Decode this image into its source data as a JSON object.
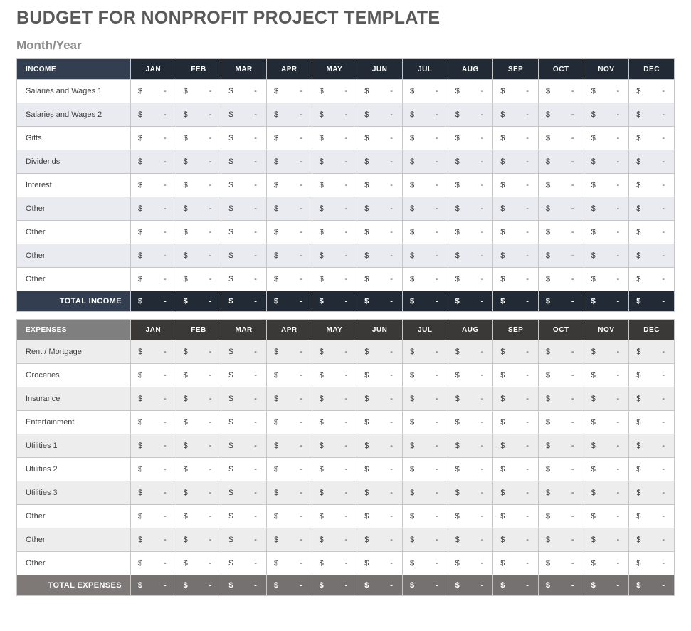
{
  "page": {
    "title": "BUDGET FOR NONPROFIT PROJECT TEMPLATE",
    "subtitle": "Month/Year"
  },
  "colors": {
    "title_text": "#595959",
    "subtitle_text": "#8C8C8C",
    "body_text": "#3F3F3F",
    "grid_line": "#C6C6C6",
    "income_header_label_bg": "#333F50",
    "income_header_month_bg": "#222B35",
    "income_band": "#E9EBF1",
    "expenses_header_label_bg": "#7F7F7F",
    "expenses_header_month_bg": "#3B3838",
    "expenses_total_label_bg": "#7E7977",
    "expenses_total_month_bg": "#767171",
    "expenses_band": "#EEEDEE"
  },
  "tables": [
    {
      "section_label": "INCOME",
      "theme": "income",
      "months": [
        "JAN",
        "FEB",
        "MAR",
        "APR",
        "MAY",
        "JUN",
        "JUL",
        "AUG",
        "SEP",
        "OCT",
        "NOV",
        "DEC"
      ],
      "cell_currency": "$",
      "cell_value": "-",
      "rows": [
        {
          "label": "Salaries and Wages 1"
        },
        {
          "label": "Salaries and Wages 2"
        },
        {
          "label": "Gifts"
        },
        {
          "label": "Dividends"
        },
        {
          "label": "Interest"
        },
        {
          "label": "Other"
        },
        {
          "label": "Other"
        },
        {
          "label": "Other"
        },
        {
          "label": "Other"
        }
      ],
      "total_label": "TOTAL INCOME"
    },
    {
      "section_label": "EXPENSES",
      "theme": "expenses",
      "months": [
        "JAN",
        "FEB",
        "MAR",
        "APR",
        "MAY",
        "JUN",
        "JUL",
        "AUG",
        "SEP",
        "OCT",
        "NOV",
        "DEC"
      ],
      "cell_currency": "$",
      "cell_value": "-",
      "rows": [
        {
          "label": "Rent / Mortgage"
        },
        {
          "label": "Groceries"
        },
        {
          "label": "Insurance"
        },
        {
          "label": "Entertainment"
        },
        {
          "label": "Utilities 1"
        },
        {
          "label": "Utilities 2"
        },
        {
          "label": "Utilities 3"
        },
        {
          "label": "Other"
        },
        {
          "label": "Other"
        },
        {
          "label": "Other"
        }
      ],
      "total_label": "TOTAL EXPENSES"
    }
  ]
}
